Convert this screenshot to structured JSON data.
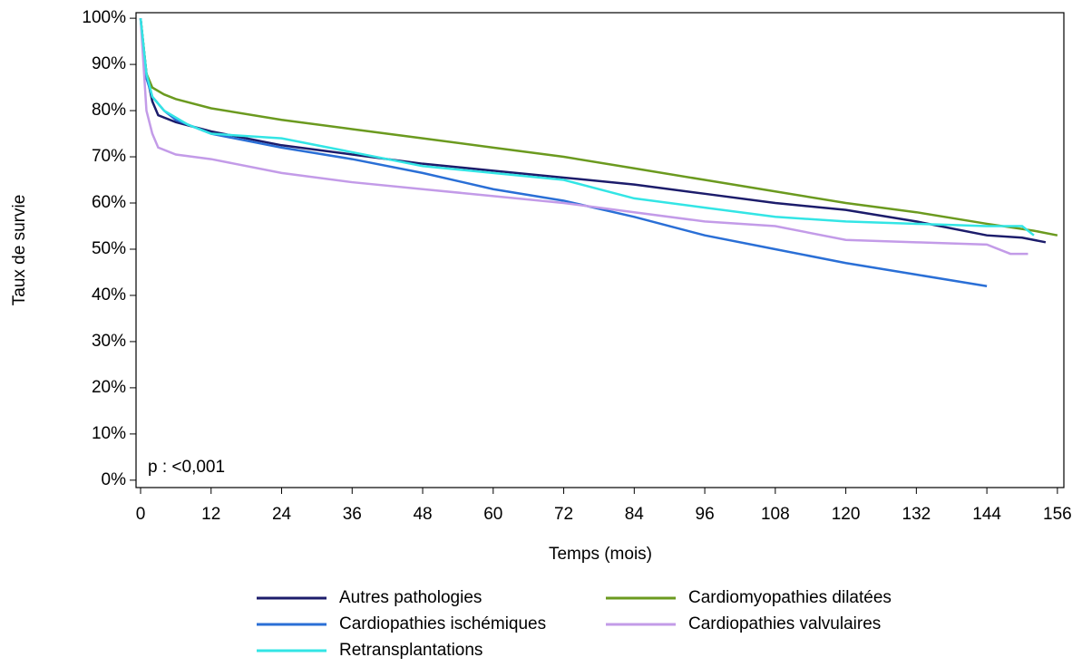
{
  "chart_data": {
    "type": "line",
    "x_label": "Temps (mois)",
    "y_label": "Taux de survie",
    "annotation": "p : <0,001",
    "xlim": [
      -0.77,
      157.1
    ],
    "ylim": [
      -1.6,
      101.2
    ],
    "xticks": [
      0,
      12,
      24,
      36,
      48,
      60,
      72,
      84,
      96,
      108,
      120,
      132,
      144,
      156
    ],
    "yticks": [
      {
        "value": 0,
        "label": "0%"
      },
      {
        "value": 10,
        "label": "10%"
      },
      {
        "value": 20,
        "label": "20%"
      },
      {
        "value": 30,
        "label": "30%"
      },
      {
        "value": 40,
        "label": "40%"
      },
      {
        "value": 50,
        "label": "50%"
      },
      {
        "value": 60,
        "label": "60%"
      },
      {
        "value": 70,
        "label": "70%"
      },
      {
        "value": 80,
        "label": "80%"
      },
      {
        "value": 90,
        "label": "90%"
      },
      {
        "value": 100,
        "label": "100%"
      }
    ],
    "series": [
      {
        "name": "Autres pathologies",
        "color": "#1c1c6b",
        "x": [
          0,
          1,
          2,
          3,
          6,
          12,
          24,
          36,
          48,
          60,
          72,
          84,
          96,
          108,
          120,
          132,
          144,
          150,
          154
        ],
        "values": [
          100,
          88,
          82,
          79,
          77.5,
          75.5,
          72.5,
          70.5,
          68.5,
          67,
          65.5,
          64,
          62,
          60,
          58.5,
          56,
          53,
          52.5,
          51.5
        ]
      },
      {
        "name": "Cardiomyopathies dilatées",
        "color": "#6b9a1f",
        "x": [
          0,
          1,
          2,
          4,
          6,
          12,
          24,
          36,
          48,
          60,
          72,
          84,
          96,
          108,
          120,
          132,
          144,
          152,
          156
        ],
        "values": [
          100,
          88,
          85,
          83.5,
          82.5,
          80.5,
          78,
          76,
          74,
          72,
          70,
          67.5,
          65,
          62.5,
          60,
          58,
          55.5,
          54,
          53
        ]
      },
      {
        "name": "Cardiopathies ischémiques",
        "color": "#2a6fd6",
        "x": [
          0,
          1,
          2,
          4,
          6,
          12,
          24,
          36,
          48,
          60,
          72,
          84,
          96,
          108,
          120,
          132,
          144
        ],
        "values": [
          100,
          87,
          83,
          80,
          78,
          75,
          72,
          69.5,
          66.5,
          63,
          60.5,
          57,
          53,
          50,
          47,
          44.5,
          42
        ]
      },
      {
        "name": "Cardiopathies valvulaires",
        "color": "#c39be8",
        "x": [
          0,
          1,
          2,
          3,
          6,
          12,
          24,
          36,
          48,
          60,
          72,
          84,
          96,
          108,
          120,
          132,
          144,
          148,
          151
        ],
        "values": [
          100,
          80,
          75,
          72,
          70.5,
          69.5,
          66.5,
          64.5,
          63,
          61.5,
          60,
          58,
          56,
          55,
          52,
          51.5,
          51,
          49,
          49
        ]
      },
      {
        "name": "Retransplantations",
        "color": "#33e5e5",
        "x": [
          0,
          1,
          2,
          4,
          8,
          12,
          24,
          36,
          48,
          60,
          72,
          84,
          96,
          108,
          120,
          132,
          144,
          150,
          152
        ],
        "values": [
          100,
          88,
          83,
          80,
          77,
          75,
          74,
          71,
          68,
          66.5,
          65,
          61,
          59,
          57,
          56,
          55.5,
          55,
          55,
          53
        ]
      }
    ]
  }
}
